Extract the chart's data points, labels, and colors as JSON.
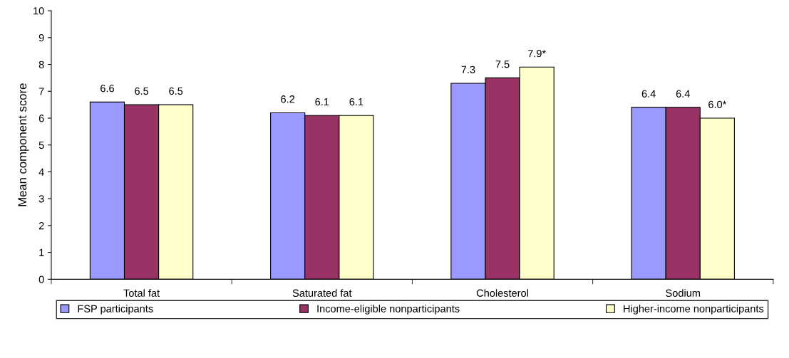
{
  "chart_data": {
    "type": "bar",
    "ylabel": "Mean component score",
    "categories": [
      "Total fat",
      "Saturated fat",
      "Cholesterol",
      "Sodium"
    ],
    "series": [
      {
        "name": "FSP participants",
        "color": "#9999ff",
        "values": [
          6.6,
          6.2,
          7.3,
          6.4
        ],
        "value_labels": [
          "6.6",
          "6.2",
          "7.3",
          "6.4"
        ]
      },
      {
        "name": "Income-eligible nonparticipants",
        "color": "#993366",
        "values": [
          6.5,
          6.1,
          7.5,
          6.4
        ],
        "value_labels": [
          "6.5",
          "6.1",
          "7.5",
          "6.4"
        ]
      },
      {
        "name": "Higher-income nonparticipants",
        "color": "#ffffcc",
        "values": [
          6.5,
          6.1,
          7.9,
          6.0
        ],
        "value_labels": [
          "6.5",
          "6.1",
          "7.9*",
          "6.0*"
        ]
      }
    ],
    "ylim": [
      0,
      10
    ],
    "yticks": [
      0,
      1,
      2,
      3,
      4,
      5,
      6,
      7,
      8,
      9,
      10
    ],
    "grid": false,
    "legend": "bottom"
  }
}
